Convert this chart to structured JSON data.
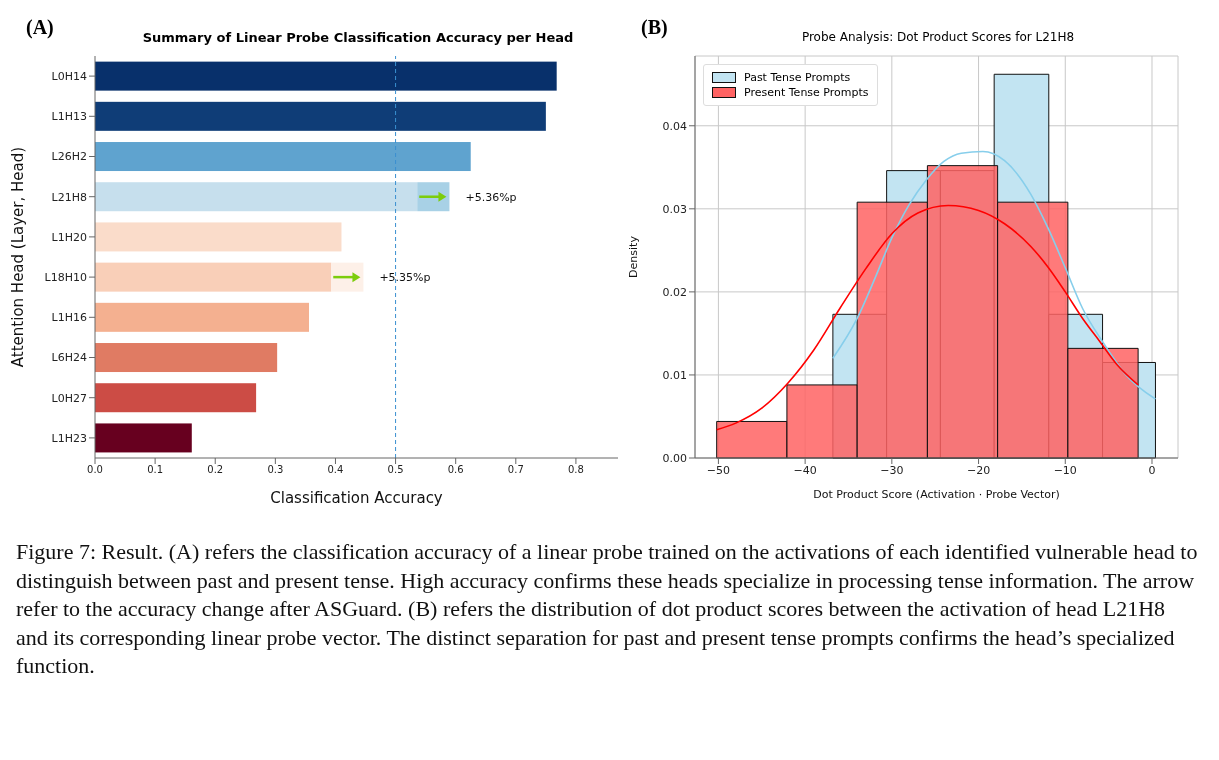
{
  "chart_data": [
    {
      "type": "bar",
      "orientation": "horizontal",
      "stacked": true,
      "title": "Summary of Linear Probe Classification Accuracy per Head",
      "xlabel": "Classification Accuracy",
      "ylabel": "Attention Head (Layer, Head)",
      "categories": [
        "L0H14",
        "L1H13",
        "L26H2",
        "L21H8",
        "L1H20",
        "L18H10",
        "L1H16",
        "L6H24",
        "L0H27",
        "L1H23"
      ],
      "series": [
        {
          "color": "#08306b",
          "colors": [
            "#08306b",
            "#0f3d77",
            "#5fa3cf",
            "#c6dfed",
            "#fadcca",
            "#f9cfb8",
            "#f4b090",
            "#e07b63",
            "#cc4c45",
            "#67001f"
          ],
          "values": [
            0.768,
            0.75,
            0.625,
            0.536,
            0.41,
            0.393,
            0.356,
            0.303,
            0.268,
            0.161
          ]
        },
        {
          "color": "#a8d1e6",
          "colors": [
            null,
            null,
            null,
            "#a8d1e6",
            null,
            "#fdf0e8",
            null,
            null,
            null,
            null
          ],
          "values": [
            null,
            null,
            null,
            0.0536,
            null,
            0.0535,
            null,
            null,
            null,
            null
          ],
          "value_labels": [
            null,
            null,
            null,
            "+5.36%p",
            null,
            "+5.35%p",
            null,
            null,
            null,
            null
          ]
        }
      ],
      "xlim": [
        0,
        0.87
      ],
      "xticks": [
        {
          "value": 0,
          "label": "0.0"
        },
        {
          "value": 0.1,
          "label": "0.1"
        },
        {
          "value": 0.2,
          "label": "0.2"
        },
        {
          "value": 0.3,
          "label": "0.3"
        },
        {
          "value": 0.4,
          "label": "0.4"
        },
        {
          "value": 0.5,
          "label": "0.5"
        },
        {
          "value": 0.6,
          "label": "0.6"
        },
        {
          "value": 0.7,
          "label": "0.7"
        },
        {
          "value": 0.8,
          "label": "0.8"
        }
      ],
      "ref_lines": [
        {
          "axis": "x",
          "value": 0.5,
          "color": "#3a8fd0",
          "line_style": "dashed"
        }
      ],
      "annotations": [
        "(A)"
      ]
    },
    {
      "type": "histogram",
      "title": "Probe Analysis: Dot Product Scores for L21H8",
      "xlabel": "Dot Product Score (Activation · Probe Vector)",
      "ylabel": "Density",
      "grid": true,
      "legend": "top left",
      "series": [
        {
          "name": "Past Tense Prompts",
          "color": "#c2e4f2",
          "bins": [
            -36.8,
            -30.6,
            -24.4,
            -18.2,
            -11.9,
            -5.7,
            0.4
          ],
          "values": [
            0.0173,
            0.0346,
            0.0346,
            0.0462,
            0.0173,
            0.0115
          ]
        },
        {
          "name": "Present Tense Prompts",
          "color": "#ff6363",
          "bins": [
            -50.2,
            -42.1,
            -34.0,
            -25.9,
            -17.8,
            -9.7,
            -1.6
          ],
          "values": [
            0.0044,
            0.0088,
            0.0308,
            0.0352,
            0.0308,
            0.0132
          ]
        },
        {
          "type": "line",
          "color": "#87ceeb",
          "x": [
            -36.8,
            -34,
            -32,
            -30,
            -28,
            -26,
            -24,
            -22,
            -19.5,
            -17,
            -14,
            -12,
            -10,
            -8,
            -5.7,
            -3,
            0.4
          ],
          "values": [
            0.012,
            0.0168,
            0.0215,
            0.0265,
            0.0305,
            0.0335,
            0.0357,
            0.0367,
            0.0369,
            0.0358,
            0.0318,
            0.0277,
            0.0229,
            0.018,
            0.014,
            0.01,
            0.0071
          ]
        },
        {
          "type": "line",
          "color": "#ff0000",
          "x": [
            -50.2,
            -48,
            -45,
            -42,
            -39,
            -36,
            -33,
            -30,
            -27,
            -23.5,
            -20,
            -17,
            -14,
            -12,
            -10,
            -8,
            -6,
            -4,
            -1.6
          ],
          "values": [
            0.0034,
            0.0042,
            0.006,
            0.009,
            0.013,
            0.018,
            0.0228,
            0.027,
            0.0295,
            0.0304,
            0.0298,
            0.0282,
            0.0255,
            0.023,
            0.02,
            0.0168,
            0.014,
            0.0112,
            0.0088
          ]
        }
      ],
      "xlim": [
        -52.7,
        3.0
      ],
      "xticks": [
        {
          "value": -50,
          "label": "−50"
        },
        {
          "value": -40,
          "label": "−40"
        },
        {
          "value": -30,
          "label": "−30"
        },
        {
          "value": -20,
          "label": "−20"
        },
        {
          "value": -10,
          "label": "−10"
        },
        0
      ],
      "ylim": [
        0,
        0.0484
      ],
      "yticks": [
        {
          "value": 0,
          "label": "0.00"
        },
        {
          "value": 0.01,
          "label": "0.01"
        },
        {
          "value": 0.02,
          "label": "0.02"
        },
        {
          "value": 0.03,
          "label": "0.03"
        },
        {
          "value": 0.04,
          "label": "0.04"
        }
      ],
      "annotations": [
        "(B)",
        "Figure 7: Result. (A) refers the classification accuracy of a linear probe trained on the activations of each identified vulnerable head to distinguish between past and present tense. High accuracy confirms these heads specialize in processing tense information. The arrow refer to the accuracy change after ASGuard. (B) refers the distribution of dot product scores between the activation of head L21H8 and its corresponding linear probe vector. The distinct separation for past and present tense prompts confirms the head’s specialized function."
      ]
    }
  ]
}
